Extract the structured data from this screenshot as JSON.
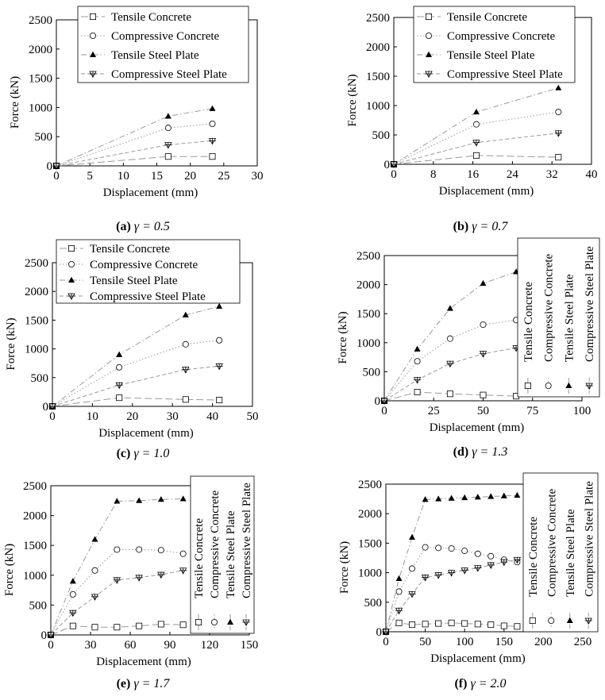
{
  "figure": {
    "series_names": [
      "Tensile Concrete",
      "Compressive Concrete",
      "Tensile Steel Plate",
      "Compressive Steel Plate"
    ],
    "markers": [
      "square",
      "circle",
      "triangle",
      "triangle-down-cross"
    ],
    "line_styles": [
      "longdash",
      "dot",
      "dashdot",
      "dash"
    ],
    "line_color": "#9a9a9a",
    "mark_color": "#000000"
  },
  "chart_data": [
    {
      "type": "line",
      "label": "(a)",
      "gamma": "γ = 0.5",
      "ylabel": "Force (kN)",
      "xlabel": "Displacement (mm)",
      "xlim": [
        0,
        30
      ],
      "ylim": [
        0,
        2500
      ],
      "xticks": [
        0,
        5,
        10,
        15,
        20,
        25,
        30
      ],
      "yticks": [
        0,
        500,
        1000,
        1500,
        2000,
        2500
      ],
      "legend": "top-right",
      "series": [
        {
          "name": "Tensile Concrete",
          "x": [
            0,
            16.7,
            23.3
          ],
          "y": [
            0,
            160,
            160
          ]
        },
        {
          "name": "Compressive Concrete",
          "x": [
            0,
            16.7,
            23.3
          ],
          "y": [
            0,
            650,
            720
          ]
        },
        {
          "name": "Tensile Steel Plate",
          "x": [
            0,
            16.7,
            23.3
          ],
          "y": [
            0,
            850,
            980
          ]
        },
        {
          "name": "Compressive Steel Plate",
          "x": [
            0,
            16.7,
            23.3
          ],
          "y": [
            0,
            360,
            430
          ]
        }
      ]
    },
    {
      "type": "line",
      "label": "(b)",
      "gamma": "γ = 0.7",
      "ylabel": "Force (kN)",
      "xlabel": "Displacement (mm)",
      "xlim": [
        0,
        40
      ],
      "ylim": [
        0,
        2500
      ],
      "xticks": [
        0,
        8,
        16,
        24,
        32,
        40
      ],
      "yticks": [
        0,
        500,
        1000,
        1500,
        2000,
        2500
      ],
      "legend": "top-right",
      "series": [
        {
          "name": "Tensile Concrete",
          "x": [
            0,
            16.7,
            33.3
          ],
          "y": [
            0,
            150,
            120
          ]
        },
        {
          "name": "Compressive Concrete",
          "x": [
            0,
            16.7,
            33.3
          ],
          "y": [
            0,
            680,
            890
          ]
        },
        {
          "name": "Tensile Steel Plate",
          "x": [
            0,
            16.7,
            33.3
          ],
          "y": [
            0,
            890,
            1300
          ]
        },
        {
          "name": "Compressive Steel Plate",
          "x": [
            0,
            16.7,
            33.3
          ],
          "y": [
            0,
            370,
            530
          ]
        }
      ]
    },
    {
      "type": "line",
      "label": "(c)",
      "gamma": "γ = 1.0",
      "ylabel": "Force (kN)",
      "xlabel": "Displacement (mm)",
      "xlim": [
        0,
        50
      ],
      "ylim": [
        0,
        2500
      ],
      "xticks": [
        0,
        10,
        20,
        30,
        40,
        50
      ],
      "yticks": [
        0,
        500,
        1000,
        1500,
        2000,
        2500
      ],
      "legend": "top-right",
      "series": [
        {
          "name": "Tensile Concrete",
          "x": [
            0,
            16.7,
            33.3,
            41.7
          ],
          "y": [
            0,
            150,
            120,
            110
          ]
        },
        {
          "name": "Compressive Concrete",
          "x": [
            0,
            16.7,
            33.3,
            41.7
          ],
          "y": [
            0,
            680,
            1080,
            1150
          ]
        },
        {
          "name": "Tensile Steel Plate",
          "x": [
            0,
            16.7,
            33.3,
            41.7
          ],
          "y": [
            0,
            900,
            1590,
            1740
          ]
        },
        {
          "name": "Compressive Steel Plate",
          "x": [
            0,
            16.7,
            33.3,
            41.7
          ],
          "y": [
            0,
            370,
            640,
            700
          ]
        }
      ]
    },
    {
      "type": "line",
      "label": "(d)",
      "gamma": "γ = 1.3",
      "ylabel": "Force (kN)",
      "xlabel": "Displacement (mm)",
      "xlim": [
        0,
        100
      ],
      "ylim": [
        0,
        2500
      ],
      "xticks": [
        0,
        25,
        50,
        75,
        100
      ],
      "yticks": [
        0,
        500,
        1000,
        1500,
        2000,
        2500
      ],
      "legend": "right (vertical)",
      "series": [
        {
          "name": "Tensile Concrete",
          "x": [
            0,
            16.7,
            33.3,
            50,
            66.7
          ],
          "y": [
            0,
            150,
            120,
            100,
            80
          ]
        },
        {
          "name": "Compressive Concrete",
          "x": [
            0,
            16.7,
            33.3,
            50,
            66.7
          ],
          "y": [
            0,
            680,
            1070,
            1310,
            1390
          ]
        },
        {
          "name": "Tensile Steel Plate",
          "x": [
            0,
            16.7,
            33.3,
            50,
            66.7
          ],
          "y": [
            0,
            890,
            1590,
            2020,
            2220
          ]
        },
        {
          "name": "Compressive Steel Plate",
          "x": [
            0,
            16.7,
            33.3,
            50,
            66.7
          ],
          "y": [
            0,
            360,
            640,
            810,
            910
          ]
        }
      ]
    },
    {
      "type": "line",
      "label": "(e)",
      "gamma": "γ = 1.7",
      "ylabel": "Force (kN)",
      "xlabel": "Displacement (mm)",
      "xlim": [
        0,
        150
      ],
      "ylim": [
        0,
        2500
      ],
      "xticks": [
        0,
        30,
        60,
        90,
        120,
        150
      ],
      "yticks": [
        0,
        500,
        1000,
        1500,
        2000,
        2500
      ],
      "legend": "right (vertical)",
      "series": [
        {
          "name": "Tensile Concrete",
          "x": [
            0,
            16.7,
            33.3,
            50,
            66.7,
            83.3,
            100
          ],
          "y": [
            0,
            150,
            130,
            130,
            150,
            180,
            170
          ]
        },
        {
          "name": "Compressive Concrete",
          "x": [
            0,
            16.7,
            33.3,
            50,
            66.7,
            83.3,
            100
          ],
          "y": [
            0,
            680,
            1080,
            1430,
            1430,
            1420,
            1360
          ]
        },
        {
          "name": "Tensile Steel Plate",
          "x": [
            0,
            16.7,
            33.3,
            50,
            66.7,
            83.3,
            100
          ],
          "y": [
            0,
            900,
            1600,
            2240,
            2250,
            2270,
            2280
          ]
        },
        {
          "name": "Compressive Steel Plate",
          "x": [
            0,
            16.7,
            33.3,
            50,
            66.7,
            83.3,
            100
          ],
          "y": [
            0,
            370,
            640,
            920,
            960,
            1010,
            1080
          ]
        }
      ]
    },
    {
      "type": "line",
      "label": "(f)",
      "gamma": "γ = 2.0",
      "ylabel": "Force (kN)",
      "xlabel": "Displacement (mm)",
      "xlim": [
        0,
        250
      ],
      "ylim": [
        0,
        2500
      ],
      "xticks": [
        0,
        50,
        100,
        150,
        200,
        250
      ],
      "yticks": [
        0,
        500,
        1000,
        1500,
        2000,
        2500
      ],
      "legend": "right (vertical)",
      "series": [
        {
          "name": "Tensile Concrete",
          "x": [
            0,
            16.7,
            33.3,
            50,
            66.7,
            83.3,
            100,
            116.7,
            133.3,
            150,
            166.7
          ],
          "y": [
            0,
            150,
            120,
            130,
            140,
            150,
            140,
            130,
            120,
            100,
            90
          ]
        },
        {
          "name": "Compressive Concrete",
          "x": [
            0,
            16.7,
            33.3,
            50,
            66.7,
            83.3,
            100,
            116.7,
            133.3,
            150,
            166.7
          ],
          "y": [
            0,
            680,
            1070,
            1430,
            1420,
            1410,
            1370,
            1320,
            1280,
            1220,
            1180
          ]
        },
        {
          "name": "Tensile Steel Plate",
          "x": [
            0,
            16.7,
            33.3,
            50,
            66.7,
            83.3,
            100,
            116.7,
            133.3,
            150,
            166.7
          ],
          "y": [
            0,
            900,
            1600,
            2240,
            2250,
            2260,
            2270,
            2280,
            2290,
            2300,
            2310
          ]
        },
        {
          "name": "Compressive Steel Plate",
          "x": [
            0,
            16.7,
            33.3,
            50,
            66.7,
            83.3,
            100,
            116.7,
            133.3,
            150,
            166.7
          ],
          "y": [
            0,
            360,
            640,
            920,
            960,
            1000,
            1040,
            1080,
            1130,
            1180,
            1220
          ]
        }
      ]
    }
  ]
}
